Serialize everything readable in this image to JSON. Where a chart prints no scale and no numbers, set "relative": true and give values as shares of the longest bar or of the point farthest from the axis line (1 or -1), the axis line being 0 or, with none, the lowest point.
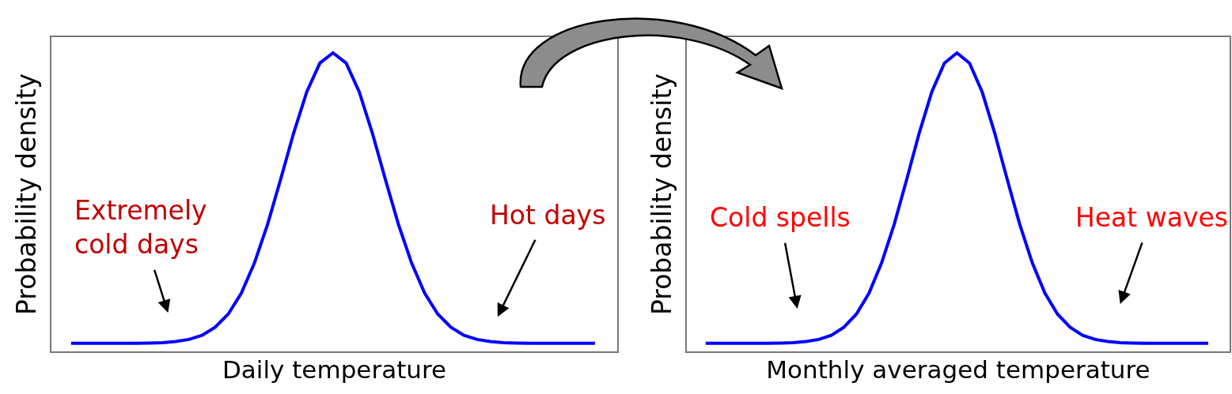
{
  "chart_data": [
    {
      "type": "line",
      "relative": true,
      "xlabel": "Daily temperature",
      "ylabel": "Probability density",
      "tick_labels": false,
      "marker": "none",
      "line_style": "solid",
      "categories": [
        null,
        null,
        null,
        null,
        null,
        null,
        null,
        null,
        null,
        null,
        null,
        null,
        null,
        null,
        null,
        null,
        null,
        null,
        null,
        null,
        null,
        null,
        null,
        null,
        null,
        null,
        null,
        null,
        null,
        null,
        null,
        null,
        null,
        null,
        null,
        null,
        null,
        null,
        null,
        null,
        null
      ],
      "series": [
        {
          "color": "#0000ff",
          "values": [
            0.027,
            0.027,
            0.027,
            0.027,
            0.027,
            0.027,
            0.028,
            0.029,
            0.033,
            0.04,
            0.054,
            0.081,
            0.125,
            0.195,
            0.296,
            0.425,
            0.576,
            0.732,
            0.87,
            0.966,
            1.0,
            0.966,
            0.87,
            0.732,
            0.576,
            0.425,
            0.296,
            0.195,
            0.125,
            0.081,
            0.054,
            0.04,
            0.033,
            0.029,
            0.028,
            0.027,
            0.027,
            0.027,
            0.027,
            0.027,
            0.027
          ]
        }
      ],
      "annotations": [
        "Extremely\ncold days",
        "Hot days"
      ]
    },
    {
      "type": "line",
      "relative": true,
      "xlabel": "Monthly averaged temperature",
      "ylabel": "Probability density",
      "tick_labels": false,
      "marker": "none",
      "line_style": "solid",
      "categories": [
        null,
        null,
        null,
        null,
        null,
        null,
        null,
        null,
        null,
        null,
        null,
        null,
        null,
        null,
        null,
        null,
        null,
        null,
        null,
        null,
        null,
        null,
        null,
        null,
        null,
        null,
        null,
        null,
        null,
        null,
        null,
        null,
        null,
        null,
        null,
        null,
        null,
        null,
        null,
        null,
        null
      ],
      "series": [
        {
          "color": "#0000ff",
          "values": [
            0.027,
            0.027,
            0.027,
            0.027,
            0.027,
            0.027,
            0.028,
            0.029,
            0.033,
            0.04,
            0.054,
            0.081,
            0.125,
            0.195,
            0.296,
            0.425,
            0.576,
            0.732,
            0.87,
            0.966,
            1.0,
            0.966,
            0.87,
            0.732,
            0.576,
            0.425,
            0.296,
            0.195,
            0.125,
            0.081,
            0.054,
            0.04,
            0.033,
            0.029,
            0.028,
            0.027,
            0.027,
            0.027,
            0.027,
            0.027,
            0.027
          ]
        }
      ],
      "annotations": [
        "Cold spells",
        "Heat waves"
      ]
    }
  ]
}
